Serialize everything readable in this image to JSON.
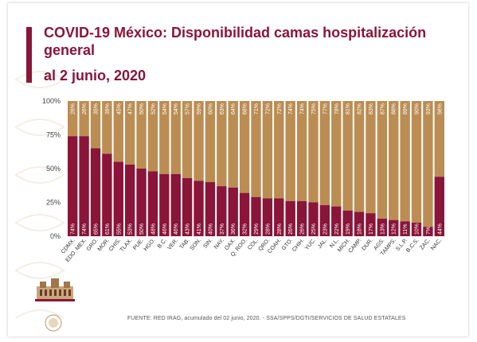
{
  "slide": {
    "title": "COVID-19 México: Disponibilidad camas hospitalización general",
    "subtitle": "al 2 junio, 2020",
    "footer": "FUENTE: RED IRAG, acumulado del 02 junio, 2020. - SSA/SPPS/DGTI/SERVICIOS DE SALUD ESTATALES"
  },
  "colors": {
    "accent": "#8a1538",
    "occupied": "#8a1538",
    "available": "#bb8d53"
  },
  "chart_data": {
    "type": "bar",
    "stacked": true,
    "title": "COVID-19 México: Disponibilidad camas hospitalización general",
    "subtitle": "al 2 junio, 2020",
    "ylim": [
      0,
      100
    ],
    "yticks": [
      "0%",
      "25%",
      "50%",
      "75%",
      "100%"
    ],
    "grid": false,
    "legend": "none",
    "categories": [
      "CDMX.",
      "EDO. MEX.",
      "GRO.",
      "MOR.",
      "CHIS.",
      "TLAX.",
      "PUE.",
      "HGO.",
      "B.C.",
      "VER.",
      "TAB.",
      "SON.",
      "SIN.",
      "NAY.",
      "OAX.",
      "Q. ROO.",
      "COL.",
      "QRO.",
      "COAH.",
      "GTO.",
      "CHIH.",
      "YUC.",
      "JAL.",
      "N.L.",
      "MICH.",
      "CAMP.",
      "DUR.",
      "AGS.",
      "TAMPS.",
      "S.L.P.",
      "B.C.S.",
      "ZAC.",
      "NAC."
    ],
    "series": [
      {
        "values": [
          74,
          74,
          65,
          61,
          55,
          53,
          50,
          48,
          46,
          46,
          43,
          41,
          40,
          37,
          36,
          32,
          29,
          28,
          28,
          26,
          26,
          25,
          23,
          22,
          19,
          18,
          17,
          13,
          12,
          11,
          10,
          7,
          44
        ],
        "labels": [
          "74%",
          "74%",
          "65%",
          "61%",
          "55%",
          "53%",
          "50%",
          "48%",
          "46%",
          "46%",
          "43%",
          "41%",
          "40%",
          "37%",
          "36%",
          "32%",
          "29%",
          "28%",
          "28%",
          "26%",
          "26%",
          "25%",
          "23%",
          "22%",
          "19%",
          "18%",
          "17%",
          "13%",
          "12%",
          "11%",
          "10%",
          "7%",
          "44%"
        ]
      },
      {
        "values": [
          26,
          26,
          35,
          39,
          45,
          47,
          50,
          52,
          54,
          54,
          57,
          59,
          60,
          63,
          64,
          68,
          71,
          72,
          72,
          74,
          74,
          75,
          77,
          78,
          81,
          82,
          83,
          87,
          88,
          89,
          90,
          93,
          56
        ],
        "labels": [
          "26%",
          "26%",
          "35%",
          "39%",
          "45%",
          "47%",
          "50%",
          "52%",
          "54%",
          "54%",
          "57%",
          "59%",
          "60%",
          "63%",
          "64%",
          "68%",
          "71%",
          "72%",
          "72%",
          "74%",
          "74%",
          "75%",
          "77%",
          "78%",
          "81%",
          "82%",
          "83%",
          "87%",
          "88%",
          "89%",
          "90%",
          "93%",
          "56%"
        ]
      }
    ]
  }
}
